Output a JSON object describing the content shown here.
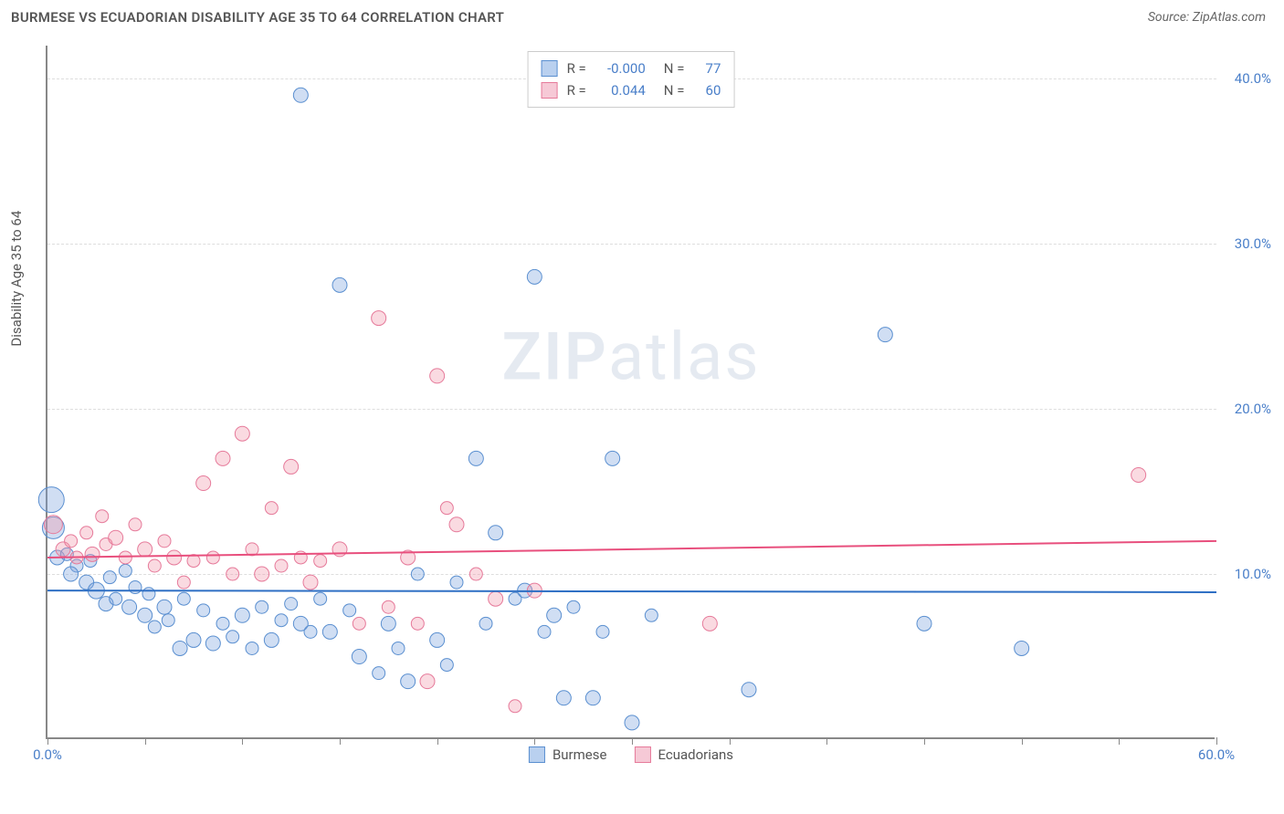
{
  "header": {
    "title": "BURMESE VS ECUADORIAN DISABILITY AGE 35 TO 64 CORRELATION CHART",
    "source": "Source: ZipAtlas.com"
  },
  "chart": {
    "type": "scatter",
    "y_axis_label": "Disability Age 35 to 64",
    "xlim": [
      0,
      60
    ],
    "ylim": [
      0,
      42
    ],
    "x_ticks": [
      0,
      5,
      10,
      15,
      20,
      25,
      30,
      35,
      40,
      45,
      50,
      55,
      60
    ],
    "x_tick_labels": {
      "0": "0.0%",
      "60": "60.0%"
    },
    "y_ticks": [
      10,
      20,
      30,
      40
    ],
    "y_tick_labels": {
      "10": "10.0%",
      "20": "20.0%",
      "30": "30.0%",
      "40": "40.0%"
    },
    "background_color": "#ffffff",
    "grid_color": "#dddddd",
    "axis_color": "#888888",
    "tick_label_color": "#4a7fc9",
    "axis_label_color": "#555555",
    "watermark": "ZIPatlas",
    "series": [
      {
        "name": "Burmese",
        "fill": "rgba(120,160,220,0.35)",
        "stroke": "#5a8fd0",
        "swatch_fill": "#b9d0ef",
        "swatch_border": "#5a8fd0",
        "trend": {
          "y_start": 9.0,
          "y_end": 8.9,
          "color": "#2e6fc4",
          "width": 2
        },
        "R": "-0.000",
        "N": "77",
        "points": [
          {
            "x": 0.2,
            "y": 14.5,
            "r": 14
          },
          {
            "x": 0.3,
            "y": 12.8,
            "r": 12
          },
          {
            "x": 0.5,
            "y": 11.0,
            "r": 8
          },
          {
            "x": 1.0,
            "y": 11.2,
            "r": 7
          },
          {
            "x": 1.5,
            "y": 10.5,
            "r": 7
          },
          {
            "x": 1.2,
            "y": 10.0,
            "r": 8
          },
          {
            "x": 2.0,
            "y": 9.5,
            "r": 8
          },
          {
            "x": 2.2,
            "y": 10.8,
            "r": 7
          },
          {
            "x": 2.5,
            "y": 9.0,
            "r": 9
          },
          {
            "x": 3.0,
            "y": 8.2,
            "r": 8
          },
          {
            "x": 3.2,
            "y": 9.8,
            "r": 7
          },
          {
            "x": 3.5,
            "y": 8.5,
            "r": 7
          },
          {
            "x": 4.0,
            "y": 10.2,
            "r": 7
          },
          {
            "x": 4.2,
            "y": 8.0,
            "r": 8
          },
          {
            "x": 4.5,
            "y": 9.2,
            "r": 7
          },
          {
            "x": 5.0,
            "y": 7.5,
            "r": 8
          },
          {
            "x": 5.2,
            "y": 8.8,
            "r": 7
          },
          {
            "x": 5.5,
            "y": 6.8,
            "r": 7
          },
          {
            "x": 6.0,
            "y": 8.0,
            "r": 8
          },
          {
            "x": 6.2,
            "y": 7.2,
            "r": 7
          },
          {
            "x": 6.8,
            "y": 5.5,
            "r": 8
          },
          {
            "x": 7.0,
            "y": 8.5,
            "r": 7
          },
          {
            "x": 7.5,
            "y": 6.0,
            "r": 8
          },
          {
            "x": 8.0,
            "y": 7.8,
            "r": 7
          },
          {
            "x": 8.5,
            "y": 5.8,
            "r": 8
          },
          {
            "x": 9.0,
            "y": 7.0,
            "r": 7
          },
          {
            "x": 9.5,
            "y": 6.2,
            "r": 7
          },
          {
            "x": 10.0,
            "y": 7.5,
            "r": 8
          },
          {
            "x": 10.5,
            "y": 5.5,
            "r": 7
          },
          {
            "x": 11.0,
            "y": 8.0,
            "r": 7
          },
          {
            "x": 11.5,
            "y": 6.0,
            "r": 8
          },
          {
            "x": 12.0,
            "y": 7.2,
            "r": 7
          },
          {
            "x": 12.5,
            "y": 8.2,
            "r": 7
          },
          {
            "x": 13.0,
            "y": 7.0,
            "r": 8
          },
          {
            "x": 13.5,
            "y": 6.5,
            "r": 7
          },
          {
            "x": 13.0,
            "y": 39.0,
            "r": 8
          },
          {
            "x": 14.0,
            "y": 8.5,
            "r": 7
          },
          {
            "x": 14.5,
            "y": 6.5,
            "r": 8
          },
          {
            "x": 15.0,
            "y": 27.5,
            "r": 8
          },
          {
            "x": 15.5,
            "y": 7.8,
            "r": 7
          },
          {
            "x": 16.0,
            "y": 5.0,
            "r": 8
          },
          {
            "x": 17.0,
            "y": 4.0,
            "r": 7
          },
          {
            "x": 17.5,
            "y": 7.0,
            "r": 8
          },
          {
            "x": 18.0,
            "y": 5.5,
            "r": 7
          },
          {
            "x": 18.5,
            "y": 3.5,
            "r": 8
          },
          {
            "x": 19.0,
            "y": 10.0,
            "r": 7
          },
          {
            "x": 20.0,
            "y": 6.0,
            "r": 8
          },
          {
            "x": 20.5,
            "y": 4.5,
            "r": 7
          },
          {
            "x": 21.0,
            "y": 9.5,
            "r": 7
          },
          {
            "x": 22.0,
            "y": 17.0,
            "r": 8
          },
          {
            "x": 22.5,
            "y": 7.0,
            "r": 7
          },
          {
            "x": 23.0,
            "y": 12.5,
            "r": 8
          },
          {
            "x": 24.0,
            "y": 8.5,
            "r": 7
          },
          {
            "x": 24.5,
            "y": 9.0,
            "r": 8
          },
          {
            "x": 25.0,
            "y": 28.0,
            "r": 8
          },
          {
            "x": 25.5,
            "y": 6.5,
            "r": 7
          },
          {
            "x": 26.0,
            "y": 7.5,
            "r": 8
          },
          {
            "x": 26.5,
            "y": 2.5,
            "r": 8
          },
          {
            "x": 27.0,
            "y": 8.0,
            "r": 7
          },
          {
            "x": 28.0,
            "y": 2.5,
            "r": 8
          },
          {
            "x": 28.5,
            "y": 6.5,
            "r": 7
          },
          {
            "x": 29.0,
            "y": 17.0,
            "r": 8
          },
          {
            "x": 30.0,
            "y": 1.0,
            "r": 8
          },
          {
            "x": 31.0,
            "y": 7.5,
            "r": 7
          },
          {
            "x": 36.0,
            "y": 3.0,
            "r": 8
          },
          {
            "x": 43.0,
            "y": 24.5,
            "r": 8
          },
          {
            "x": 45.0,
            "y": 7.0,
            "r": 8
          },
          {
            "x": 50.0,
            "y": 5.5,
            "r": 8
          }
        ]
      },
      {
        "name": "Ecuadorians",
        "fill": "rgba(240,150,170,0.35)",
        "stroke": "#e67a9a",
        "swatch_fill": "#f6c9d6",
        "swatch_border": "#e67a9a",
        "trend": {
          "y_start": 11.0,
          "y_end": 12.0,
          "color": "#e84f7d",
          "width": 2
        },
        "R": "0.044",
        "N": "60",
        "points": [
          {
            "x": 0.3,
            "y": 13.0,
            "r": 10
          },
          {
            "x": 0.8,
            "y": 11.5,
            "r": 8
          },
          {
            "x": 1.2,
            "y": 12.0,
            "r": 7
          },
          {
            "x": 1.5,
            "y": 11.0,
            "r": 7
          },
          {
            "x": 2.0,
            "y": 12.5,
            "r": 7
          },
          {
            "x": 2.3,
            "y": 11.2,
            "r": 8
          },
          {
            "x": 2.8,
            "y": 13.5,
            "r": 7
          },
          {
            "x": 3.0,
            "y": 11.8,
            "r": 7
          },
          {
            "x": 3.5,
            "y": 12.2,
            "r": 8
          },
          {
            "x": 4.0,
            "y": 11.0,
            "r": 7
          },
          {
            "x": 4.5,
            "y": 13.0,
            "r": 7
          },
          {
            "x": 5.0,
            "y": 11.5,
            "r": 8
          },
          {
            "x": 5.5,
            "y": 10.5,
            "r": 7
          },
          {
            "x": 6.0,
            "y": 12.0,
            "r": 7
          },
          {
            "x": 6.5,
            "y": 11.0,
            "r": 8
          },
          {
            "x": 7.0,
            "y": 9.5,
            "r": 7
          },
          {
            "x": 7.5,
            "y": 10.8,
            "r": 7
          },
          {
            "x": 8.0,
            "y": 15.5,
            "r": 8
          },
          {
            "x": 8.5,
            "y": 11.0,
            "r": 7
          },
          {
            "x": 9.0,
            "y": 17.0,
            "r": 8
          },
          {
            "x": 9.5,
            "y": 10.0,
            "r": 7
          },
          {
            "x": 10.0,
            "y": 18.5,
            "r": 8
          },
          {
            "x": 10.5,
            "y": 11.5,
            "r": 7
          },
          {
            "x": 11.0,
            "y": 10.0,
            "r": 8
          },
          {
            "x": 11.5,
            "y": 14.0,
            "r": 7
          },
          {
            "x": 12.0,
            "y": 10.5,
            "r": 7
          },
          {
            "x": 12.5,
            "y": 16.5,
            "r": 8
          },
          {
            "x": 13.0,
            "y": 11.0,
            "r": 7
          },
          {
            "x": 13.5,
            "y": 9.5,
            "r": 8
          },
          {
            "x": 14.0,
            "y": 10.8,
            "r": 7
          },
          {
            "x": 15.0,
            "y": 11.5,
            "r": 8
          },
          {
            "x": 16.0,
            "y": 7.0,
            "r": 7
          },
          {
            "x": 17.0,
            "y": 25.5,
            "r": 8
          },
          {
            "x": 17.5,
            "y": 8.0,
            "r": 7
          },
          {
            "x": 18.5,
            "y": 11.0,
            "r": 8
          },
          {
            "x": 19.0,
            "y": 7.0,
            "r": 7
          },
          {
            "x": 19.5,
            "y": 3.5,
            "r": 8
          },
          {
            "x": 20.0,
            "y": 22.0,
            "r": 8
          },
          {
            "x": 20.5,
            "y": 14.0,
            "r": 7
          },
          {
            "x": 21.0,
            "y": 13.0,
            "r": 8
          },
          {
            "x": 22.0,
            "y": 10.0,
            "r": 7
          },
          {
            "x": 23.0,
            "y": 8.5,
            "r": 8
          },
          {
            "x": 24.0,
            "y": 2.0,
            "r": 7
          },
          {
            "x": 25.0,
            "y": 9.0,
            "r": 8
          },
          {
            "x": 34.0,
            "y": 7.0,
            "r": 8
          },
          {
            "x": 56.0,
            "y": 16.0,
            "r": 8
          }
        ]
      }
    ],
    "stats_legend_labels": {
      "R": "R =",
      "N": "N ="
    },
    "bottom_legend": [
      "Burmese",
      "Ecuadorians"
    ]
  }
}
